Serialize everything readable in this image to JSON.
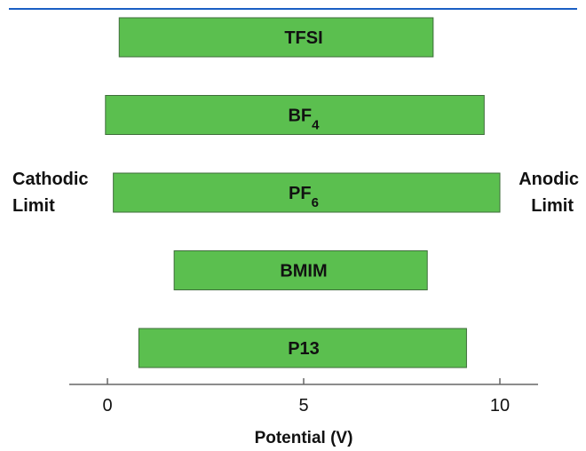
{
  "colors": {
    "bar_fill": "#5bbf4f",
    "bar_stroke": "#3f6e3b",
    "axis": "#666666",
    "top_rule": "#1b5fc4"
  },
  "side_labels": {
    "left": [
      "Cathodic",
      "Limit"
    ],
    "right": [
      "Anodic",
      "Limit"
    ]
  },
  "chart_data": {
    "type": "bar",
    "orientation": "horizontal",
    "xlabel": "Potential (V)",
    "xlim": [
      -1,
      11
    ],
    "x_ticks": [
      0,
      5,
      10
    ],
    "x_tick_labels": [
      "0",
      "5",
      "10"
    ],
    "grid": false,
    "series": [
      {
        "label": "TFSI",
        "subscript": "",
        "start": 0.3,
        "end": 8.3
      },
      {
        "label": "BF",
        "subscript": "4",
        "start": -0.05,
        "end": 9.6
      },
      {
        "label": "PF",
        "subscript": "6",
        "start": 0.15,
        "end": 10.0
      },
      {
        "label": "BMIM",
        "subscript": "",
        "start": 1.7,
        "end": 8.15
      },
      {
        "label": "P13",
        "subscript": "",
        "start": 0.8,
        "end": 9.15
      }
    ]
  }
}
